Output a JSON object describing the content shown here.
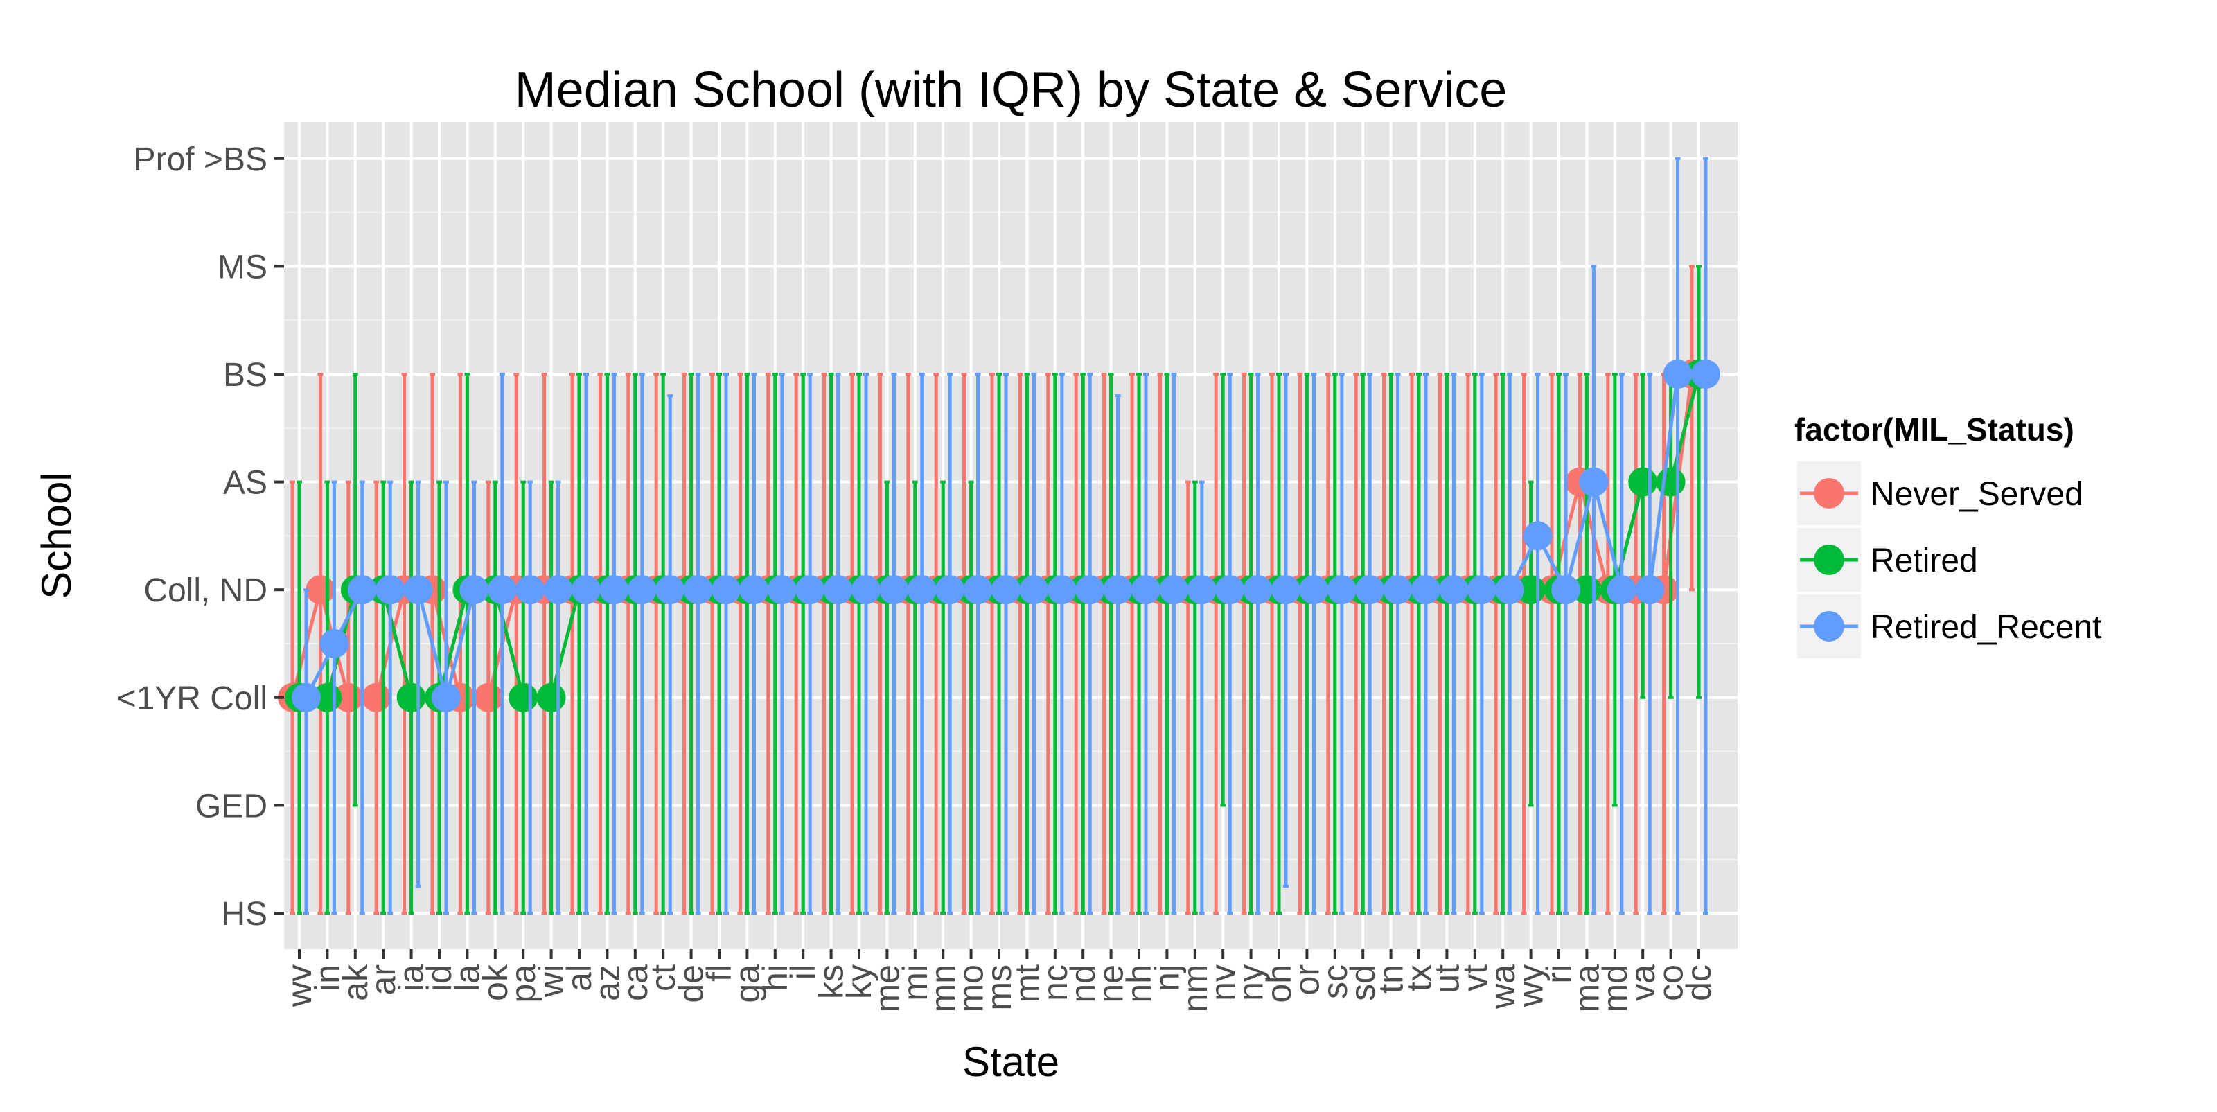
{
  "chart_data": {
    "type": "line",
    "title": "Median School (with IQR) by State & Service",
    "xlabel": "State",
    "ylabel": "School",
    "categories": [
      "wv",
      "in",
      "ak",
      "ar",
      "ia",
      "id",
      "la",
      "ok",
      "pa",
      "wi",
      "al",
      "az",
      "ca",
      "ct",
      "de",
      "fl",
      "ga",
      "hi",
      "il",
      "ks",
      "ky",
      "me",
      "mi",
      "mn",
      "mo",
      "ms",
      "mt",
      "nc",
      "nd",
      "ne",
      "nh",
      "nj",
      "nm",
      "nv",
      "ny",
      "oh",
      "or",
      "sc",
      "sd",
      "tn",
      "tx",
      "ut",
      "vt",
      "wa",
      "wy",
      "ri",
      "ma",
      "md",
      "va",
      "co",
      "dc"
    ],
    "y_levels": [
      "HS",
      "GED",
      "<1YR Coll",
      "Coll, ND",
      "AS",
      "BS",
      "MS",
      "Prof >BS"
    ],
    "y_note": "y values are level indices: 0=HS, 1=GED, 2=<1YR Coll, 3=Coll, ND, 4=AS, 5=BS, 6=MS, 7=Prof >BS",
    "ylim": [
      0,
      7
    ],
    "grid": true,
    "legend": {
      "title": "factor(MIL_Status)",
      "placement": "right"
    },
    "series": [
      {
        "name": "Never_Served",
        "color": "#F8766D",
        "median": [
          2,
          3,
          2,
          2,
          3,
          3,
          2,
          2,
          3,
          3,
          3,
          3,
          3,
          3,
          3,
          3,
          3,
          3,
          3,
          3,
          3,
          3,
          3,
          3,
          3,
          3,
          3,
          3,
          3,
          3,
          3,
          3,
          3,
          3,
          3,
          3,
          3,
          3,
          3,
          3,
          3,
          3,
          3,
          3,
          3,
          3,
          4,
          3,
          3,
          3,
          5
        ],
        "low": [
          0,
          0,
          0,
          0,
          0,
          0,
          0,
          0,
          0,
          0,
          0,
          0,
          0,
          0,
          0,
          0,
          0,
          0,
          0,
          0,
          0,
          0,
          0,
          0,
          0,
          0,
          0,
          0,
          0,
          0,
          0,
          0,
          0,
          0,
          0,
          0,
          0,
          0,
          0,
          0,
          0,
          0,
          0,
          0,
          0,
          0,
          0,
          0,
          0,
          0,
          3
        ],
        "high": [
          4,
          5,
          4,
          4,
          5,
          5,
          5,
          4,
          5,
          5,
          5,
          5,
          5,
          5,
          5,
          5,
          5,
          5,
          5,
          5,
          5,
          5,
          5,
          5,
          5,
          5,
          5,
          5,
          5,
          5,
          5,
          5,
          4,
          5,
          5,
          5,
          5,
          5,
          5,
          5,
          5,
          5,
          5,
          5,
          5,
          5,
          5,
          5,
          5,
          5,
          6
        ]
      },
      {
        "name": "Retired",
        "color": "#00BA38",
        "median": [
          2,
          2,
          3,
          3,
          2,
          2,
          3,
          3,
          2,
          2,
          3,
          3,
          3,
          3,
          3,
          3,
          3,
          3,
          3,
          3,
          3,
          3,
          3,
          3,
          3,
          3,
          3,
          3,
          3,
          3,
          3,
          3,
          3,
          3,
          3,
          3,
          3,
          3,
          3,
          3,
          3,
          3,
          3,
          3,
          3,
          3,
          3,
          3,
          4,
          4,
          5
        ],
        "low": [
          0,
          0,
          1,
          0,
          0,
          0,
          0,
          0,
          0,
          0,
          0,
          0,
          0,
          0,
          0,
          0,
          0,
          0,
          0,
          0,
          0,
          0,
          0,
          0,
          0,
          0,
          0,
          0,
          0,
          0,
          0,
          0,
          0,
          1,
          0,
          0,
          0,
          0,
          0,
          0,
          0,
          0,
          0,
          0,
          1,
          0,
          0,
          1,
          2,
          2,
          2
        ],
        "high": [
          4,
          4,
          5,
          4,
          4,
          4,
          5,
          4,
          4,
          4,
          5,
          5,
          5,
          5,
          5,
          5,
          5,
          5,
          5,
          5,
          5,
          4,
          4,
          4,
          4,
          5,
          5,
          5,
          5,
          5,
          5,
          5,
          4,
          5,
          5,
          5,
          5,
          5,
          5,
          5,
          5,
          5,
          5,
          5,
          4,
          5,
          5,
          5,
          5,
          5,
          6
        ]
      },
      {
        "name": "Retired_Recent",
        "color": "#619CFF",
        "median": [
          2,
          2.5,
          3,
          3,
          3,
          2,
          3,
          3,
          3,
          3,
          3,
          3,
          3,
          3,
          3,
          3,
          3,
          3,
          3,
          3,
          3,
          3,
          3,
          3,
          3,
          3,
          3,
          3,
          3,
          3,
          3,
          3,
          3,
          3,
          3,
          3,
          3,
          3,
          3,
          3,
          3,
          3,
          3,
          3,
          3.5,
          3,
          4,
          3,
          3,
          5,
          5
        ],
        "low": [
          0,
          0,
          0,
          0,
          0.25,
          0,
          0,
          0,
          0,
          0,
          0,
          0,
          0,
          0,
          0,
          0,
          0,
          0,
          0,
          0,
          0,
          0,
          0,
          0,
          0,
          0,
          0,
          0,
          0,
          0,
          0,
          0,
          0,
          0,
          0,
          0.25,
          0,
          0,
          0,
          0,
          0,
          0,
          0,
          0,
          0,
          0,
          0,
          0,
          0,
          0,
          0
        ],
        "high": [
          3,
          4,
          4,
          4,
          4,
          4,
          4,
          5,
          4,
          4,
          5,
          5,
          5,
          4.8,
          5,
          5,
          5,
          5,
          5,
          5,
          5,
          5,
          5,
          5,
          5,
          5,
          5,
          5,
          5,
          4.8,
          5,
          5,
          4,
          5,
          5,
          5,
          5,
          5,
          5,
          5,
          5,
          5,
          5,
          5,
          5,
          5,
          6,
          5,
          5,
          7,
          7
        ]
      }
    ]
  }
}
